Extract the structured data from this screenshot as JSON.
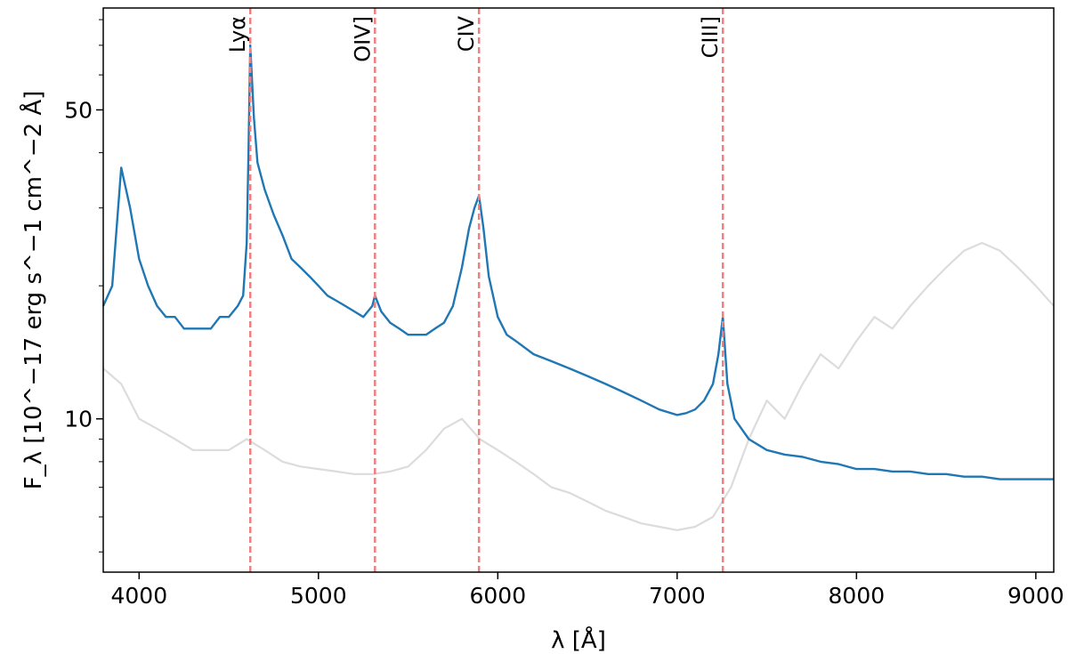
{
  "chart_data": {
    "type": "line",
    "title": "",
    "xlabel": "λ [Å]",
    "ylabel": "F_λ [10^−17 erg s^−1 cm^−2 Å]",
    "y_scale": "log",
    "xlim": [
      3800,
      9100
    ],
    "ylim": [
      4.5,
      85
    ],
    "x_ticks": [
      4000,
      5000,
      6000,
      7000,
      8000,
      9000
    ],
    "y_ticks": [
      10,
      50
    ],
    "grid": false,
    "legend": "none",
    "emission_lines": [
      {
        "label": "Lyα",
        "x": 4620
      },
      {
        "label": "OIV]",
        "x": 5315
      },
      {
        "label": "CIV",
        "x": 5895
      },
      {
        "label": "CIII]",
        "x": 7255
      }
    ],
    "series": [
      {
        "color": "#1f77b4",
        "x": [
          3800,
          3850,
          3900,
          3950,
          4000,
          4050,
          4100,
          4150,
          4200,
          4250,
          4300,
          4350,
          4400,
          4450,
          4500,
          4550,
          4580,
          4600,
          4610,
          4620,
          4640,
          4660,
          4700,
          4750,
          4800,
          4850,
          4900,
          4950,
          5000,
          5050,
          5100,
          5150,
          5200,
          5250,
          5300,
          5315,
          5350,
          5400,
          5450,
          5500,
          5550,
          5600,
          5650,
          5700,
          5750,
          5800,
          5840,
          5870,
          5895,
          5920,
          5950,
          6000,
          6050,
          6100,
          6200,
          6300,
          6400,
          6500,
          6600,
          6700,
          6800,
          6900,
          7000,
          7050,
          7100,
          7150,
          7200,
          7230,
          7255,
          7280,
          7320,
          7400,
          7500,
          7600,
          7700,
          7800,
          7900,
          8000,
          8100,
          8200,
          8300,
          8400,
          8500,
          8600,
          8700,
          8800,
          8900,
          9000,
          9100
        ],
        "y": [
          18,
          20,
          37,
          30,
          23,
          20,
          18,
          17,
          17,
          16,
          16,
          16,
          16,
          17,
          17,
          18,
          19,
          25,
          40,
          70,
          48,
          38,
          33,
          29,
          26,
          23,
          22,
          21,
          20,
          19,
          18.5,
          18,
          17.5,
          17,
          18,
          19,
          17.5,
          16.5,
          16,
          15.5,
          15.5,
          15.5,
          16,
          16.5,
          18,
          22,
          27,
          30,
          32,
          27,
          21,
          17,
          15.5,
          15,
          14,
          13.5,
          13,
          12.5,
          12,
          11.5,
          11,
          10.5,
          10.2,
          10.3,
          10.5,
          11,
          12,
          14,
          17,
          12,
          10,
          9,
          8.5,
          8.3,
          8.2,
          8,
          7.9,
          7.7,
          7.7,
          7.6,
          7.6,
          7.5,
          7.5,
          7.4,
          7.4,
          7.3,
          7.3,
          7.3,
          7.3
        ]
      },
      {
        "color": "#dcdcdc",
        "x": [
          3800,
          3900,
          4000,
          4100,
          4200,
          4300,
          4400,
          4500,
          4600,
          4700,
          4800,
          4900,
          5000,
          5100,
          5200,
          5300,
          5400,
          5500,
          5600,
          5700,
          5800,
          5900,
          6000,
          6100,
          6200,
          6300,
          6400,
          6500,
          6600,
          6700,
          6800,
          6900,
          7000,
          7100,
          7200,
          7300,
          7400,
          7500,
          7600,
          7700,
          7800,
          7900,
          8000,
          8100,
          8200,
          8300,
          8400,
          8500,
          8600,
          8700,
          8800,
          8900,
          9000,
          9100
        ],
        "y": [
          13,
          12,
          10,
          9.5,
          9,
          8.5,
          8.5,
          8.5,
          9,
          8.5,
          8,
          7.8,
          7.7,
          7.6,
          7.5,
          7.5,
          7.6,
          7.8,
          8.5,
          9.5,
          10,
          9,
          8.5,
          8,
          7.5,
          7,
          6.8,
          6.5,
          6.2,
          6,
          5.8,
          5.7,
          5.6,
          5.7,
          6,
          7,
          9,
          11,
          10,
          12,
          14,
          13,
          15,
          17,
          16,
          18,
          20,
          22,
          24,
          25,
          24,
          22,
          20,
          18
        ]
      }
    ]
  }
}
